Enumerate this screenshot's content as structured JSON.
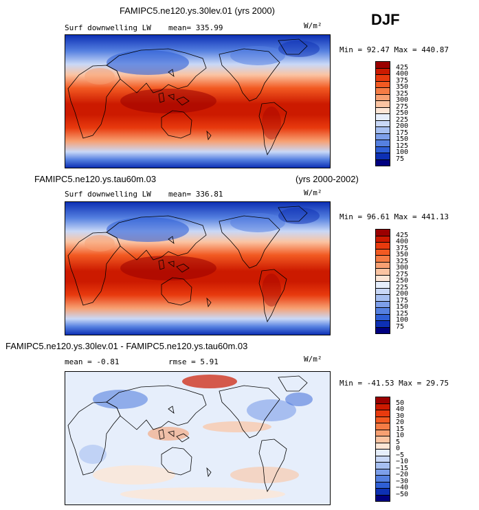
{
  "season": "DJF",
  "units": "W/m²",
  "panels": [
    {
      "title": "FAMIPC5.ne120.ys.30lev.01 (yrs 2000)",
      "variable": "Surf downwelling LW",
      "mean": "mean= 335.99",
      "minmax": "Min =  92.47 Max = 440.87"
    },
    {
      "title": "FAMIPC5.ne120.ys.tau60m.03",
      "years": "(yrs 2000-2002)",
      "variable": "Surf downwelling LW",
      "mean": "mean= 336.81",
      "minmax": "Min =  96.61 Max = 441.13"
    },
    {
      "title": "FAMIPC5.ne120.ys.30lev.01 - FAMIPC5.ne120.ys.tau60m.03",
      "mean": "mean =  -0.81",
      "rmse": "rmse =   5.91",
      "minmax": "Min = -41.53 Max =  29.75"
    }
  ],
  "chart_data": [
    {
      "type": "heatmap",
      "title": "FAMIPC5.ne120.ys.30lev.01 (yrs 2000)",
      "variable": "Surf downwelling LW",
      "units": "W/m²",
      "mean": 335.99,
      "min": 92.47,
      "max": 440.87,
      "colorbar": {
        "levels": [
          75,
          100,
          125,
          150,
          175,
          200,
          225,
          250,
          275,
          300,
          325,
          350,
          375,
          400,
          425
        ],
        "labels": [
          "425",
          "400",
          "375",
          "350",
          "325",
          "300",
          "275",
          "250",
          "225",
          "200",
          "175",
          "150",
          "125",
          "100",
          "75"
        ],
        "colors": [
          "#9b0000",
          "#cc1a00",
          "#e83a0e",
          "#f25a22",
          "#f57c45",
          "#f7a072",
          "#fbc4a2",
          "#fde6d6",
          "#e6eefb",
          "#c9d8f7",
          "#a6bff1",
          "#7d9fea",
          "#5580e0",
          "#2f5fd6",
          "#0d30b4",
          "#000080"
        ]
      }
    },
    {
      "type": "heatmap",
      "title": "FAMIPC5.ne120.ys.tau60m.03",
      "years": "(yrs 2000-2002)",
      "variable": "Surf downwelling LW",
      "units": "W/m²",
      "mean": 336.81,
      "min": 96.61,
      "max": 441.13,
      "colorbar": {
        "levels": [
          75,
          100,
          125,
          150,
          175,
          200,
          225,
          250,
          275,
          300,
          325,
          350,
          375,
          400,
          425
        ],
        "labels": [
          "425",
          "400",
          "375",
          "350",
          "325",
          "300",
          "275",
          "250",
          "225",
          "200",
          "175",
          "150",
          "125",
          "100",
          "75"
        ],
        "colors": [
          "#9b0000",
          "#cc1a00",
          "#e83a0e",
          "#f25a22",
          "#f57c45",
          "#f7a072",
          "#fbc4a2",
          "#fde6d6",
          "#e6eefb",
          "#c9d8f7",
          "#a6bff1",
          "#7d9fea",
          "#5580e0",
          "#2f5fd6",
          "#0d30b4",
          "#000080"
        ]
      }
    },
    {
      "type": "heatmap",
      "title": "FAMIPC5.ne120.ys.30lev.01 - FAMIPC5.ne120.ys.tau60m.03",
      "units": "W/m²",
      "mean": -0.81,
      "rmse": 5.91,
      "min": -41.53,
      "max": 29.75,
      "colorbar": {
        "levels": [
          -50,
          -40,
          -30,
          -20,
          -15,
          -10,
          -5,
          0,
          5,
          10,
          15,
          20,
          30,
          40,
          50
        ],
        "labels": [
          "50",
          "40",
          "30",
          "20",
          "15",
          "10",
          "5",
          "0",
          "−5",
          "−10",
          "−15",
          "−20",
          "−30",
          "−40",
          "−50"
        ],
        "colors": [
          "#9b0000",
          "#cc1a00",
          "#e83a0e",
          "#f25a22",
          "#f57c45",
          "#f7a072",
          "#fbc4a2",
          "#fde6d6",
          "#e6eefb",
          "#c9d8f7",
          "#a6bff1",
          "#7d9fea",
          "#5580e0",
          "#2f5fd6",
          "#0d30b4",
          "#000080"
        ]
      }
    }
  ]
}
